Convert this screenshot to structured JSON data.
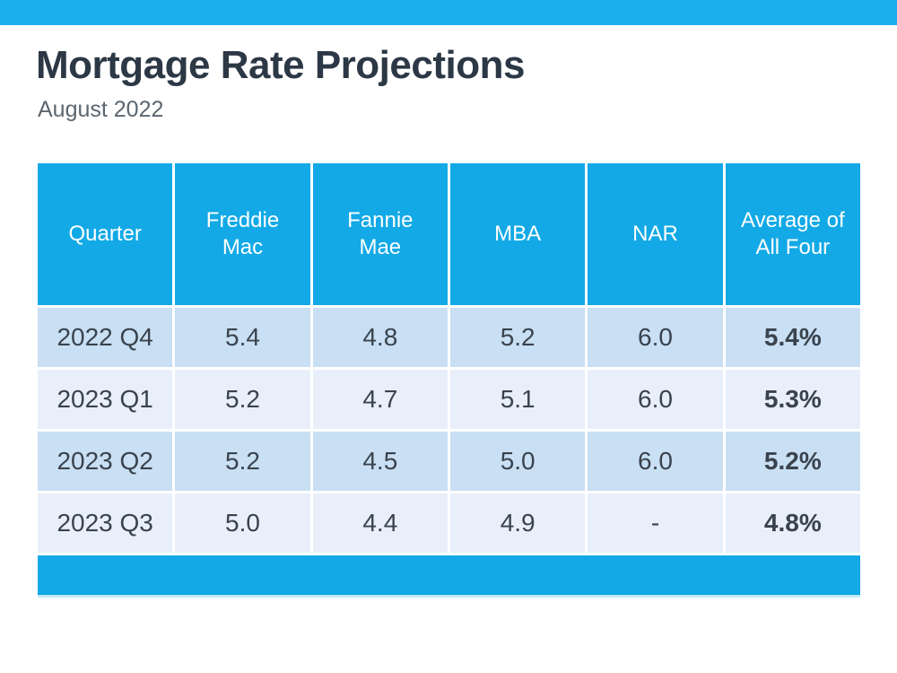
{
  "header": {
    "title": "Mortgage Rate Projections",
    "subtitle": "August 2022"
  },
  "colors": {
    "top_bar": "#1AAFEC",
    "table_header": "#12A9E6",
    "row_odd": "#C9DFF4",
    "row_even": "#E8EFFA",
    "title_text": "#2C3845",
    "subtitle_text": "#5B6670",
    "cell_text": "#3A434D",
    "footer_underline": "#C7E9F9"
  },
  "chart_data": {
    "type": "table",
    "title": "Mortgage Rate Projections",
    "subtitle": "August 2022",
    "columns": [
      "Quarter",
      "Freddie Mac",
      "Fannie Mae",
      "MBA",
      "NAR",
      "Average of All Four"
    ],
    "rows": [
      [
        "2022 Q4",
        "5.4",
        "4.8",
        "5.2",
        "6.0",
        "5.4%"
      ],
      [
        "2023 Q1",
        "5.2",
        "4.7",
        "5.1",
        "6.0",
        "5.3%"
      ],
      [
        "2023 Q2",
        "5.2",
        "4.5",
        "5.0",
        "6.0",
        "5.2%"
      ],
      [
        "2023 Q3",
        "5.0",
        "4.4",
        "4.9",
        "-",
        "4.8%"
      ]
    ],
    "notes": {
      "average_column_bold": true,
      "layout": "header row blue with white text, alternating light-blue data rows, solid blue footer band"
    }
  }
}
